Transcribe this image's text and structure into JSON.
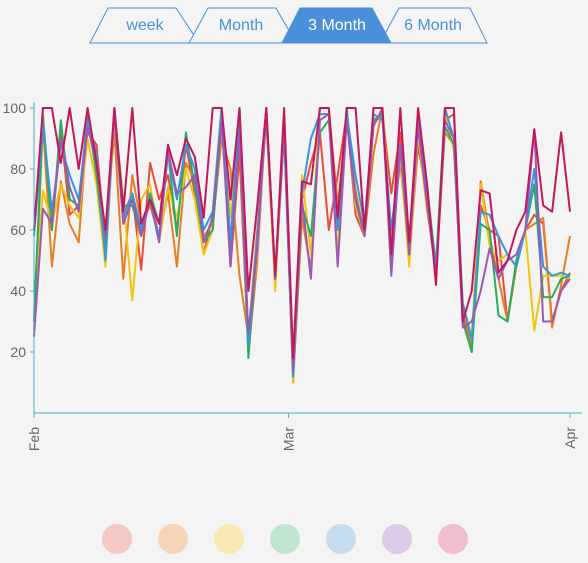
{
  "tabs": [
    {
      "label": "week",
      "active": false
    },
    {
      "label": "Month",
      "active": false
    },
    {
      "label": "3 Month",
      "active": true
    },
    {
      "label": "6 Month",
      "active": false
    }
  ],
  "colors": {
    "tab_accent": "#4a90d9",
    "axis": "#4ab0c8",
    "tick_text": "#666666"
  },
  "chart_data": {
    "type": "line",
    "title": "",
    "xlabel": "",
    "ylabel": "",
    "x_tick_labels": [
      "Feb",
      "Mar",
      "Apr"
    ],
    "y_ticks": [
      20,
      40,
      60,
      80,
      100
    ],
    "ylim": [
      0,
      100
    ],
    "x_range_days": [
      0,
      60
    ],
    "grid": false,
    "legend": "bottom",
    "series": [
      {
        "color": "#e74c3c",
        "x": [
          0,
          1,
          2,
          3,
          4,
          5,
          6,
          7,
          8,
          9,
          10,
          11,
          12,
          13,
          14,
          15,
          16,
          17,
          18,
          19,
          20,
          21,
          22,
          23,
          24,
          25,
          26,
          27,
          28,
          29,
          30,
          31,
          32,
          33,
          34,
          35,
          36,
          37,
          38,
          39,
          40,
          41,
          42,
          43,
          44,
          45,
          46,
          47,
          48,
          49,
          50,
          51,
          52,
          53,
          54,
          55,
          56,
          57,
          58,
          59,
          60
        ],
        "values": [
          30,
          98,
          60,
          93,
          65,
          68,
          92,
          88,
          55,
          100,
          65,
          72,
          47,
          82,
          70,
          78,
          60,
          88,
          72,
          52,
          65,
          100,
          48,
          85,
          20,
          50,
          100,
          43,
          92,
          12,
          70,
          82,
          92,
          60,
          78,
          98,
          65,
          58,
          95,
          98,
          72,
          92,
          50,
          88,
          70,
          48,
          96,
          98,
          32,
          20,
          68,
          60,
          58,
          30,
          50,
          60,
          65,
          62,
          30,
          40,
          46
        ]
      },
      {
        "color": "#e67e22",
        "x": [
          0,
          1,
          2,
          3,
          4,
          5,
          6,
          7,
          8,
          9,
          10,
          11,
          12,
          13,
          14,
          15,
          16,
          17,
          18,
          19,
          20,
          21,
          22,
          23,
          24,
          25,
          26,
          27,
          28,
          29,
          30,
          31,
          32,
          33,
          34,
          35,
          36,
          37,
          38,
          39,
          40,
          41,
          42,
          43,
          44,
          45,
          46,
          47,
          48,
          49,
          50,
          51,
          52,
          53,
          54,
          55,
          56,
          57,
          58,
          59,
          60
        ],
        "values": [
          27,
          95,
          48,
          76,
          62,
          56,
          95,
          80,
          60,
          92,
          44,
          78,
          62,
          68,
          58,
          72,
          48,
          82,
          76,
          58,
          62,
          90,
          80,
          45,
          25,
          60,
          96,
          42,
          96,
          10,
          64,
          47,
          100,
          100,
          68,
          96,
          73,
          58,
          85,
          100,
          58,
          82,
          52,
          96,
          72,
          46,
          92,
          88,
          34,
          22,
          76,
          58,
          44,
          30,
          48,
          60,
          62,
          64,
          28,
          42,
          58
        ]
      },
      {
        "color": "#f1c40f",
        "x": [
          0,
          1,
          2,
          3,
          4,
          5,
          6,
          7,
          8,
          9,
          10,
          11,
          12,
          13,
          14,
          15,
          16,
          17,
          18,
          19,
          20,
          21,
          22,
          23,
          24,
          25,
          26,
          27,
          28,
          29,
          30,
          31,
          32,
          33,
          34,
          35,
          36,
          37,
          38,
          39,
          40,
          41,
          42,
          43,
          44,
          45,
          46,
          47,
          48,
          49,
          50,
          51,
          52,
          53,
          54,
          55,
          56,
          57,
          58,
          59,
          60
        ],
        "values": [
          33,
          73,
          62,
          75,
          68,
          64,
          90,
          75,
          48,
          98,
          70,
          37,
          70,
          75,
          56,
          74,
          64,
          80,
          70,
          52,
          60,
          100,
          64,
          92,
          22,
          52,
          100,
          40,
          98,
          10,
          78,
          52,
          100,
          100,
          52,
          100,
          68,
          58,
          100,
          100,
          58,
          85,
          48,
          92,
          66,
          50,
          98,
          86,
          36,
          25,
          75,
          55,
          50,
          52,
          48,
          60,
          27,
          45,
          45,
          45,
          44
        ]
      },
      {
        "color": "#27ae60",
        "x": [
          0,
          1,
          2,
          3,
          4,
          5,
          6,
          7,
          8,
          9,
          10,
          11,
          12,
          13,
          14,
          15,
          16,
          17,
          18,
          19,
          20,
          21,
          22,
          23,
          24,
          25,
          26,
          27,
          28,
          29,
          30,
          31,
          32,
          33,
          34,
          35,
          36,
          37,
          38,
          39,
          40,
          41,
          42,
          43,
          44,
          45,
          46,
          47,
          48,
          49,
          50,
          51,
          52,
          53,
          54,
          55,
          56,
          57,
          58,
          59,
          60
        ],
        "values": [
          30,
          97,
          60,
          96,
          70,
          68,
          98,
          78,
          52,
          100,
          68,
          68,
          58,
          72,
          62,
          86,
          58,
          92,
          74,
          56,
          60,
          96,
          52,
          95,
          18,
          56,
          100,
          44,
          94,
          12,
          68,
          58,
          92,
          96,
          62,
          100,
          70,
          60,
          96,
          98,
          50,
          88,
          52,
          96,
          74,
          48,
          94,
          88,
          30,
          20,
          62,
          60,
          32,
          30,
          50,
          60,
          75,
          38,
          38,
          44,
          45
        ]
      },
      {
        "color": "#3498db",
        "x": [
          0,
          1,
          2,
          3,
          4,
          5,
          6,
          7,
          8,
          9,
          10,
          11,
          12,
          13,
          14,
          15,
          16,
          17,
          18,
          19,
          20,
          21,
          22,
          23,
          24,
          25,
          26,
          27,
          28,
          29,
          30,
          31,
          32,
          33,
          34,
          35,
          36,
          37,
          38,
          39,
          40,
          41,
          42,
          43,
          44,
          45,
          46,
          47,
          48,
          49,
          50,
          51,
          52,
          53,
          54,
          55,
          56,
          57,
          58,
          59,
          60
        ],
        "values": [
          58,
          95,
          66,
          88,
          78,
          70,
          96,
          85,
          50,
          100,
          64,
          72,
          60,
          70,
          58,
          85,
          70,
          88,
          80,
          60,
          66,
          100,
          56,
          100,
          22,
          58,
          98,
          46,
          92,
          12,
          72,
          90,
          98,
          98,
          60,
          98,
          78,
          62,
          98,
          96,
          60,
          86,
          56,
          96,
          70,
          48,
          100,
          90,
          36,
          24,
          66,
          65,
          58,
          52,
          48,
          60,
          80,
          48,
          45,
          46,
          45
        ]
      },
      {
        "color": "#9b59b6",
        "x": [
          0,
          1,
          2,
          3,
          4,
          5,
          6,
          7,
          8,
          9,
          10,
          11,
          12,
          13,
          14,
          15,
          16,
          17,
          18,
          19,
          20,
          21,
          22,
          23,
          24,
          25,
          26,
          27,
          28,
          29,
          30,
          31,
          32,
          33,
          34,
          35,
          36,
          37,
          38,
          39,
          40,
          41,
          42,
          43,
          44,
          45,
          46,
          47,
          48,
          49,
          50,
          51,
          52,
          53,
          54,
          55,
          56,
          57,
          58,
          59,
          60
        ],
        "values": [
          25,
          67,
          62,
          90,
          74,
          66,
          94,
          82,
          58,
          98,
          62,
          70,
          58,
          70,
          56,
          86,
          72,
          74,
          78,
          56,
          64,
          96,
          48,
          92,
          26,
          54,
          100,
          44,
          95,
          14,
          70,
          44,
          96,
          98,
          48,
          96,
          70,
          58,
          94,
          100,
          45,
          88,
          52,
          94,
          68,
          45,
          96,
          90,
          28,
          30,
          40,
          54,
          44,
          50,
          52,
          60,
          93,
          30,
          30,
          40,
          44
        ]
      },
      {
        "color": "#c2185b",
        "x": [
          0,
          1,
          2,
          3,
          4,
          5,
          6,
          7,
          8,
          9,
          10,
          11,
          12,
          13,
          14,
          15,
          16,
          17,
          18,
          19,
          20,
          21,
          22,
          23,
          24,
          25,
          26,
          27,
          28,
          29,
          30,
          31,
          32,
          33,
          34,
          35,
          36,
          37,
          38,
          39,
          40,
          41,
          42,
          43,
          44,
          45,
          46,
          47,
          48,
          49,
          50,
          51,
          52,
          53,
          54,
          55,
          56,
          57,
          58,
          59,
          60
        ],
        "values": [
          60,
          100,
          100,
          82,
          100,
          80,
          100,
          82,
          60,
          100,
          66,
          100,
          62,
          70,
          62,
          88,
          78,
          90,
          84,
          64,
          100,
          100,
          70,
          100,
          40,
          68,
          100,
          45,
          100,
          18,
          76,
          75,
          100,
          100,
          64,
          100,
          100,
          60,
          100,
          100,
          52,
          100,
          56,
          100,
          75,
          42,
          100,
          100,
          30,
          40,
          73,
          72,
          46,
          50,
          60,
          66,
          93,
          68,
          66,
          92,
          66
        ]
      }
    ]
  },
  "legend_swatches": [
    "#f3c9c5",
    "#f5d4b8",
    "#f7e8b4",
    "#c1e4cf",
    "#c4dcf0",
    "#dcc9e8",
    "#f0bcd0"
  ]
}
